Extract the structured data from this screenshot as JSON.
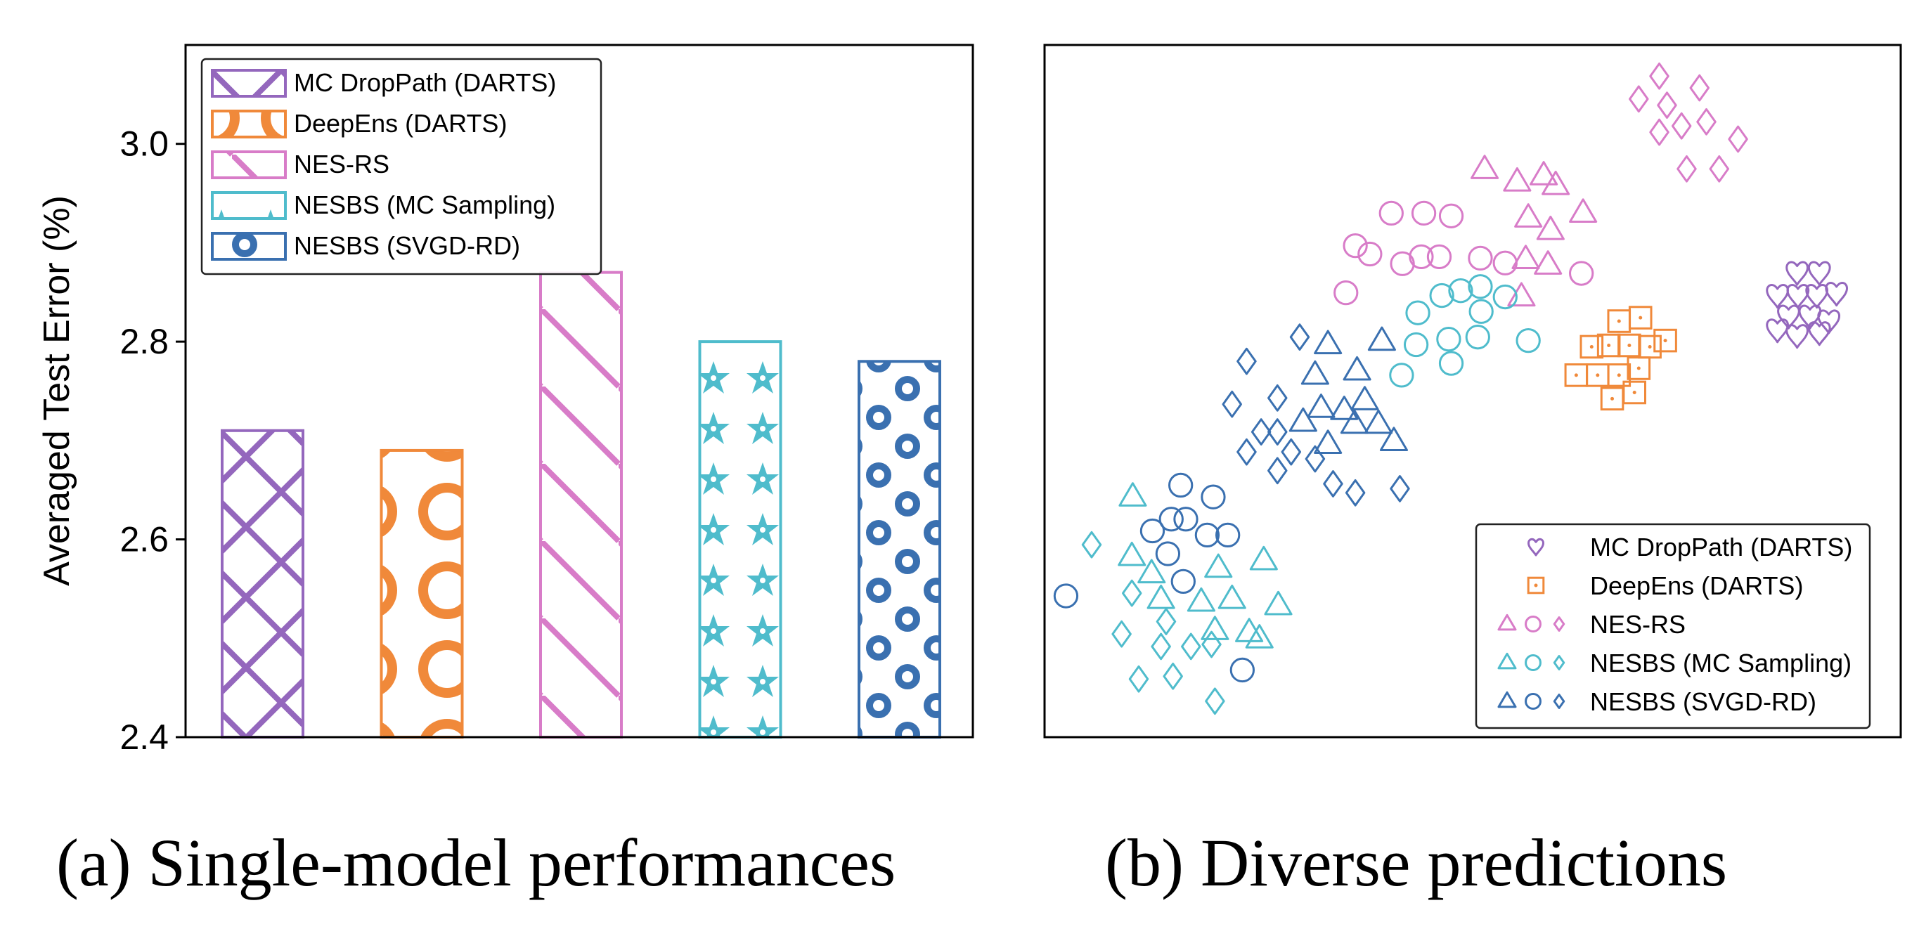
{
  "figure": {
    "caption_a": "(a) Single-model performances",
    "caption_b": "(b) Diverse predictions"
  },
  "chart_data": [
    {
      "type": "bar",
      "title": "",
      "xlabel": "",
      "ylabel": "Averaged Test Error (%)",
      "ylim": [
        2.4,
        3.1
      ],
      "yticks": [
        2.4,
        2.6,
        2.8,
        3.0
      ],
      "ytick_labels": [
        "2.4",
        "2.6",
        "2.8",
        "3.0"
      ],
      "legend_position": "top-left",
      "series": [
        {
          "name": "MC DropPath (DARTS)",
          "value": 2.71,
          "color": "#9467bd",
          "pattern": "crosshatch"
        },
        {
          "name": "DeepEns (DARTS)",
          "value": 2.69,
          "color": "#f0893a",
          "pattern": "big-circles"
        },
        {
          "name": "NES-RS",
          "value": 2.87,
          "color": "#d87cc8",
          "pattern": "diagonal-lines"
        },
        {
          "name": "NESBS (MC Sampling)",
          "value": 2.8,
          "color": "#4fbccc",
          "pattern": "stars"
        },
        {
          "name": "NESBS (SVGD-RD)",
          "value": 2.78,
          "color": "#3a70b0",
          "pattern": "small-circles"
        }
      ]
    },
    {
      "type": "scatter",
      "title": "",
      "xlabel": "",
      "ylabel": "",
      "xlim": [
        0,
        100
      ],
      "ylim": [
        0,
        100
      ],
      "axis_ticks": false,
      "legend_position": "bottom-right",
      "legend": [
        {
          "name": "MC DropPath (DARTS)",
          "markers": [
            "heart"
          ],
          "color": "#9467bd"
        },
        {
          "name": "DeepEns (DARTS)",
          "markers": [
            "square-dot"
          ],
          "color": "#f0893a"
        },
        {
          "name": "NES-RS",
          "markers": [
            "triangle",
            "circle",
            "diamond"
          ],
          "color": "#d87cc8"
        },
        {
          "name": "NESBS (MC Sampling)",
          "markers": [
            "triangle",
            "circle",
            "diamond"
          ],
          "color": "#4fbccc"
        },
        {
          "name": "NESBS (SVGD-RD)",
          "markers": [
            "triangle",
            "circle",
            "diamond"
          ],
          "color": "#3a70b0"
        }
      ],
      "series": [
        {
          "name": "MC DropPath (DARTS)",
          "marker": "heart",
          "color": "#9467bd",
          "points": [
            [
              87.9,
              67.1
            ],
            [
              90.5,
              67.1
            ],
            [
              85.6,
              63.8
            ],
            [
              88.0,
              63.8
            ],
            [
              90.2,
              63.8
            ],
            [
              92.5,
              64.1
            ],
            [
              86.9,
              60.8
            ],
            [
              89.4,
              60.8
            ],
            [
              91.6,
              60.1
            ],
            [
              87.9,
              58.0
            ],
            [
              85.6,
              58.8
            ],
            [
              90.5,
              58.4
            ]
          ]
        },
        {
          "name": "DeepEns (DARTS)",
          "marker": "square-dot",
          "color": "#f0893a",
          "points": [
            [
              67.1,
              60.1
            ],
            [
              69.6,
              60.6
            ],
            [
              65.9,
              56.6
            ],
            [
              68.3,
              56.6
            ],
            [
              70.7,
              56.4
            ],
            [
              64.6,
              52.3
            ],
            [
              67.1,
              52.3
            ],
            [
              69.4,
              53.3
            ],
            [
              72.5,
              57.3
            ],
            [
              66.3,
              48.9
            ],
            [
              68.9,
              49.8
            ],
            [
              62.1,
              52.3
            ],
            [
              63.9,
              56.4
            ]
          ]
        },
        {
          "name": "NES-RS triangles",
          "marker": "triangle",
          "color": "#d87cc8",
          "points": [
            [
              51.4,
              82.0
            ],
            [
              55.2,
              80.2
            ],
            [
              58.3,
              81.1
            ],
            [
              59.7,
              79.7
            ],
            [
              56.5,
              75.0
            ],
            [
              59.1,
              73.2
            ],
            [
              62.9,
              75.7
            ],
            [
              56.2,
              69.0
            ],
            [
              58.8,
              68.2
            ],
            [
              55.7,
              63.6
            ]
          ]
        },
        {
          "name": "NES-RS circles",
          "marker": "circle",
          "color": "#d87cc8",
          "points": [
            [
              40.5,
              75.7
            ],
            [
              44.3,
              75.7
            ],
            [
              47.5,
              75.3
            ],
            [
              38.0,
              69.8
            ],
            [
              44.0,
              69.4
            ],
            [
              46.1,
              69.4
            ],
            [
              50.9,
              69.2
            ],
            [
              53.8,
              68.5
            ],
            [
              62.7,
              67.0
            ],
            [
              41.8,
              68.4
            ],
            [
              36.3,
              71.0
            ],
            [
              35.2,
              64.2
            ]
          ]
        },
        {
          "name": "NES-RS diamonds",
          "marker": "diamond",
          "color": "#d87cc8",
          "points": [
            [
              69.4,
              92.2
            ],
            [
              71.8,
              95.5
            ],
            [
              76.5,
              93.8
            ],
            [
              71.8,
              87.4
            ],
            [
              74.4,
              88.3
            ],
            [
              77.3,
              88.9
            ],
            [
              81.0,
              86.4
            ],
            [
              75.0,
              82.1
            ],
            [
              78.8,
              82.1
            ],
            [
              72.7,
              91.3
            ]
          ]
        },
        {
          "name": "NESBS (MC Sampling) circles",
          "marker": "circle",
          "color": "#4fbccc",
          "points": [
            [
              46.4,
              63.8
            ],
            [
              48.6,
              64.5
            ],
            [
              50.9,
              65.1
            ],
            [
              53.8,
              63.6
            ],
            [
              43.6,
              61.3
            ],
            [
              51.0,
              61.5
            ],
            [
              43.4,
              56.7
            ],
            [
              47.2,
              57.5
            ],
            [
              50.6,
              57.8
            ],
            [
              56.5,
              57.3
            ],
            [
              41.7,
              52.3
            ],
            [
              47.5,
              54.0
            ]
          ]
        },
        {
          "name": "NESBS (MC Sampling) triangles",
          "marker": "triangle",
          "color": "#4fbccc",
          "points": [
            [
              10.3,
              34.7
            ],
            [
              10.2,
              26.1
            ],
            [
              12.5,
              23.6
            ],
            [
              20.3,
              24.4
            ],
            [
              25.6,
              25.5
            ],
            [
              13.6,
              19.9
            ],
            [
              18.3,
              19.5
            ],
            [
              21.9,
              19.9
            ],
            [
              19.9,
              15.4
            ],
            [
              23.9,
              15.1
            ],
            [
              27.3,
              19.0
            ],
            [
              25.1,
              14.2
            ]
          ]
        },
        {
          "name": "NESBS (MC Sampling) diamonds",
          "marker": "diamond",
          "color": "#4fbccc",
          "points": [
            [
              5.5,
              27.8
            ],
            [
              10.2,
              20.8
            ],
            [
              14.2,
              16.7
            ],
            [
              9.0,
              14.9
            ],
            [
              13.6,
              13.1
            ],
            [
              17.1,
              13.1
            ],
            [
              19.5,
              13.4
            ],
            [
              11.0,
              8.4
            ],
            [
              15.0,
              8.8
            ],
            [
              19.9,
              5.2
            ]
          ]
        },
        {
          "name": "NESBS (SVGD-RD) circles",
          "marker": "circle",
          "color": "#3a70b0",
          "points": [
            [
              15.9,
              36.4
            ],
            [
              19.7,
              34.7
            ],
            [
              12.6,
              29.8
            ],
            [
              14.8,
              31.5
            ],
            [
              16.5,
              31.5
            ],
            [
              19.0,
              29.2
            ],
            [
              21.4,
              29.2
            ],
            [
              14.4,
              26.5
            ],
            [
              16.2,
              22.5
            ],
            [
              2.5,
              20.4
            ],
            [
              23.1,
              9.7
            ]
          ]
        },
        {
          "name": "NESBS (SVGD-RD) triangles",
          "marker": "triangle",
          "color": "#3a70b0",
          "points": [
            [
              33.1,
              56.7
            ],
            [
              39.4,
              57.2
            ],
            [
              31.6,
              52.3
            ],
            [
              36.5,
              52.9
            ],
            [
              32.3,
              47.5
            ],
            [
              35.0,
              47.2
            ],
            [
              37.4,
              48.6
            ],
            [
              30.2,
              45.5
            ],
            [
              36.2,
              45.2
            ],
            [
              39.0,
              45.2
            ],
            [
              33.1,
              42.3
            ],
            [
              40.8,
              42.7
            ]
          ]
        },
        {
          "name": "NESBS (SVGD-RD) diamonds",
          "marker": "diamond",
          "color": "#3a70b0",
          "points": [
            [
              29.8,
              57.8
            ],
            [
              23.6,
              54.3
            ],
            [
              27.2,
              49.0
            ],
            [
              21.9,
              48.1
            ],
            [
              25.3,
              44.1
            ],
            [
              27.2,
              44.1
            ],
            [
              23.6,
              41.2
            ],
            [
              28.8,
              41.2
            ],
            [
              31.6,
              40.2
            ],
            [
              27.2,
              38.5
            ],
            [
              33.7,
              36.6
            ],
            [
              36.3,
              35.3
            ],
            [
              41.5,
              35.9
            ]
          ]
        }
      ]
    }
  ]
}
